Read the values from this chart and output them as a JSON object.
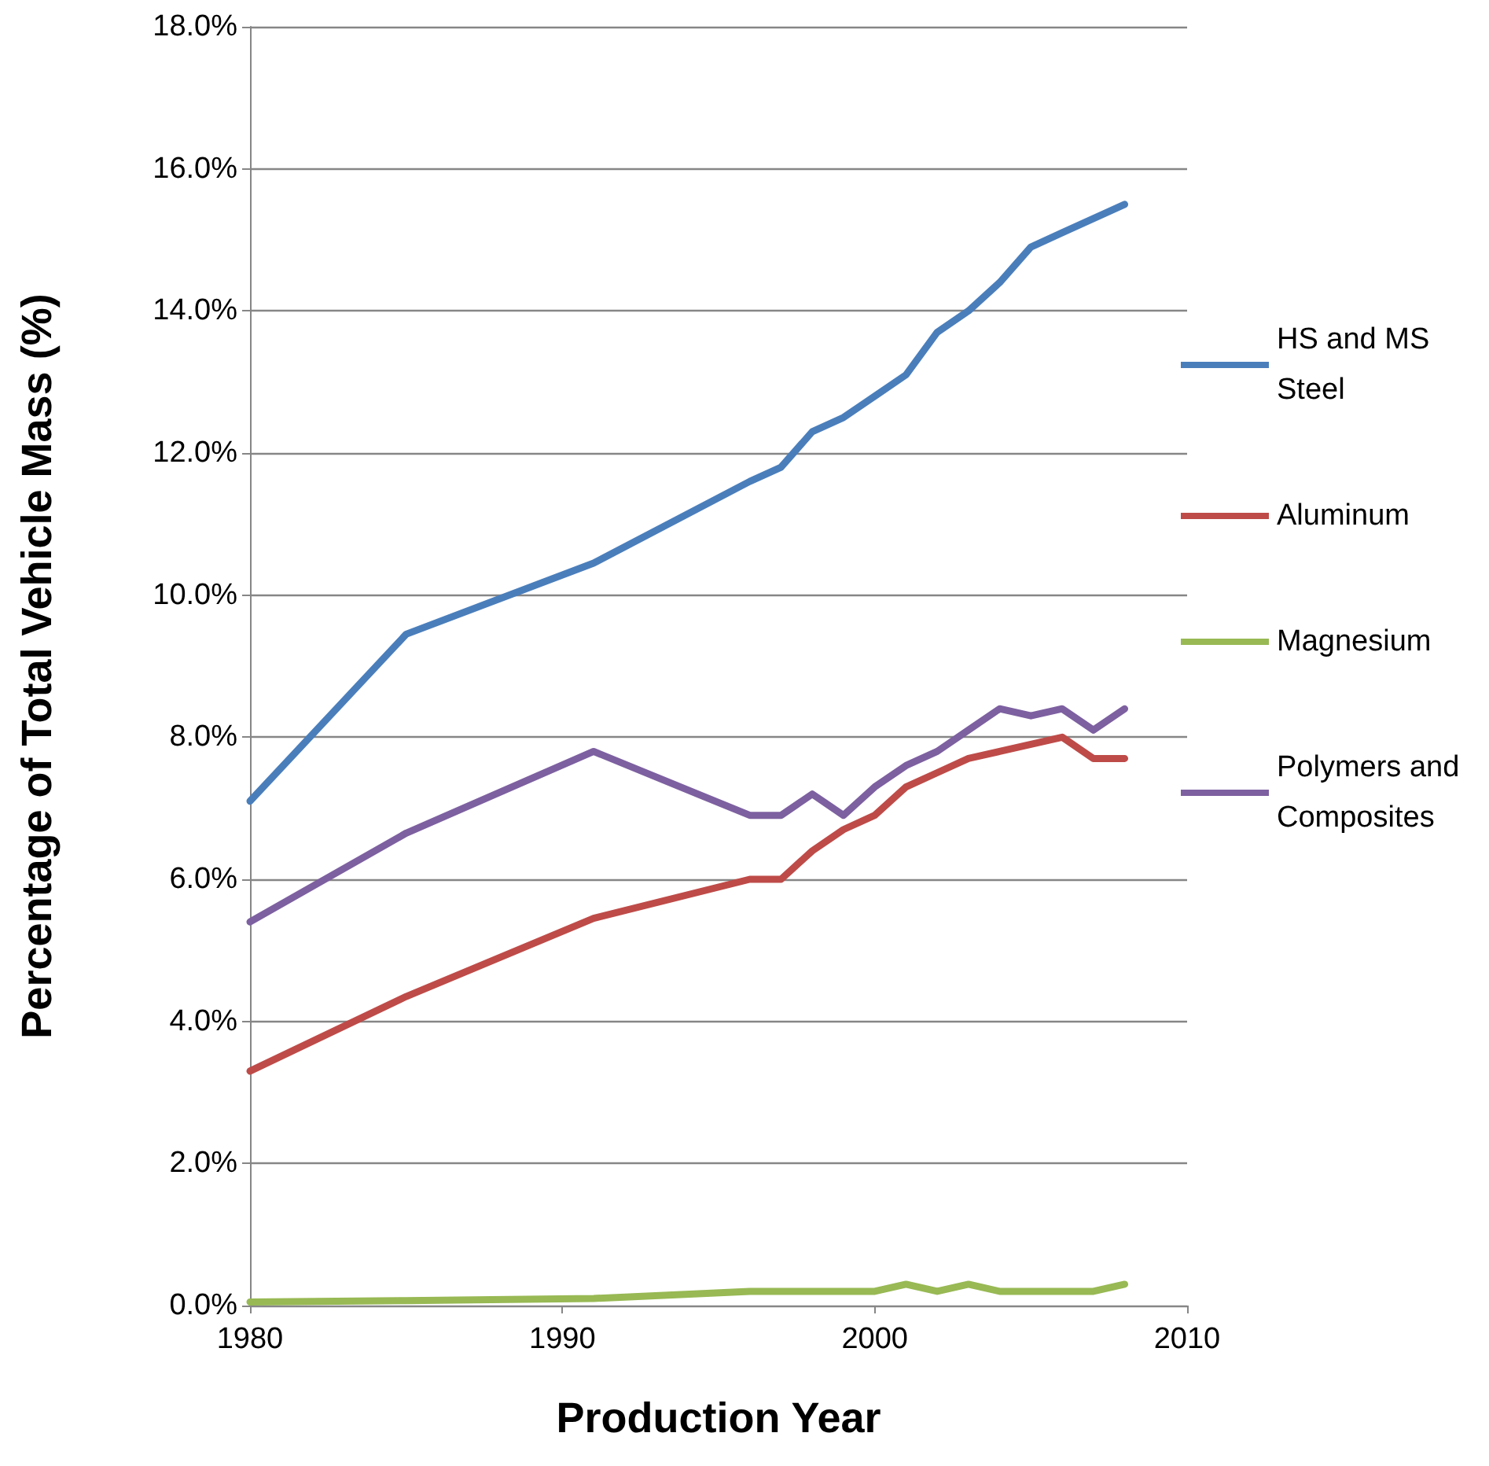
{
  "chart_data": {
    "type": "line",
    "xlabel": "Production Year",
    "ylabel": "Percentage of Total Vehicle Mass (%)",
    "x": [
      1980,
      1985,
      1991,
      1996,
      1997,
      1998,
      1999,
      2000,
      2001,
      2002,
      2003,
      2004,
      2005,
      2006,
      2007,
      2008
    ],
    "xlim": [
      1980,
      2010
    ],
    "xticks": [
      1980,
      1990,
      2000,
      2010
    ],
    "ylim": [
      0,
      18
    ],
    "yticks": [
      {
        "value": 0,
        "label": "0.0%"
      },
      {
        "value": 2,
        "label": "2.0%"
      },
      {
        "value": 4,
        "label": "4.0%"
      },
      {
        "value": 6,
        "label": "6.0%"
      },
      {
        "value": 8,
        "label": "8.0%"
      },
      {
        "value": 10,
        "label": "10.0%"
      },
      {
        "value": 12,
        "label": "12.0%"
      },
      {
        "value": 14,
        "label": "14.0%"
      },
      {
        "value": 16,
        "label": "16.0%"
      },
      {
        "value": 18,
        "label": "18.0%"
      }
    ],
    "grid": "y",
    "legend": "right",
    "marker": "none",
    "line_style": "solid",
    "series": [
      {
        "name": "HS and MS Steel",
        "color": "#4a7ebb",
        "values": [
          7.1,
          9.45,
          10.45,
          11.6,
          11.8,
          12.3,
          12.5,
          12.8,
          13.1,
          13.7,
          14.0,
          14.4,
          14.9,
          15.1,
          15.3,
          15.5
        ]
      },
      {
        "name": "Aluminum",
        "color": "#be4b48",
        "values": [
          3.3,
          4.35,
          5.45,
          6.0,
          6.0,
          6.4,
          6.7,
          6.9,
          7.3,
          7.5,
          7.7,
          7.8,
          7.9,
          8.0,
          7.7,
          7.7
        ]
      },
      {
        "name": "Magnesium",
        "color": "#98b954",
        "values": [
          0.05,
          0.07,
          0.1,
          0.2,
          0.2,
          0.2,
          0.2,
          0.2,
          0.3,
          0.2,
          0.3,
          0.2,
          0.2,
          0.2,
          0.2,
          0.3
        ]
      },
      {
        "name": "Polymers and Composites",
        "color": "#7d60a0",
        "values": [
          5.4,
          6.65,
          7.8,
          6.9,
          6.9,
          7.2,
          6.9,
          7.3,
          7.6,
          7.8,
          8.1,
          8.4,
          8.3,
          8.4,
          8.1,
          8.4
        ]
      }
    ]
  }
}
